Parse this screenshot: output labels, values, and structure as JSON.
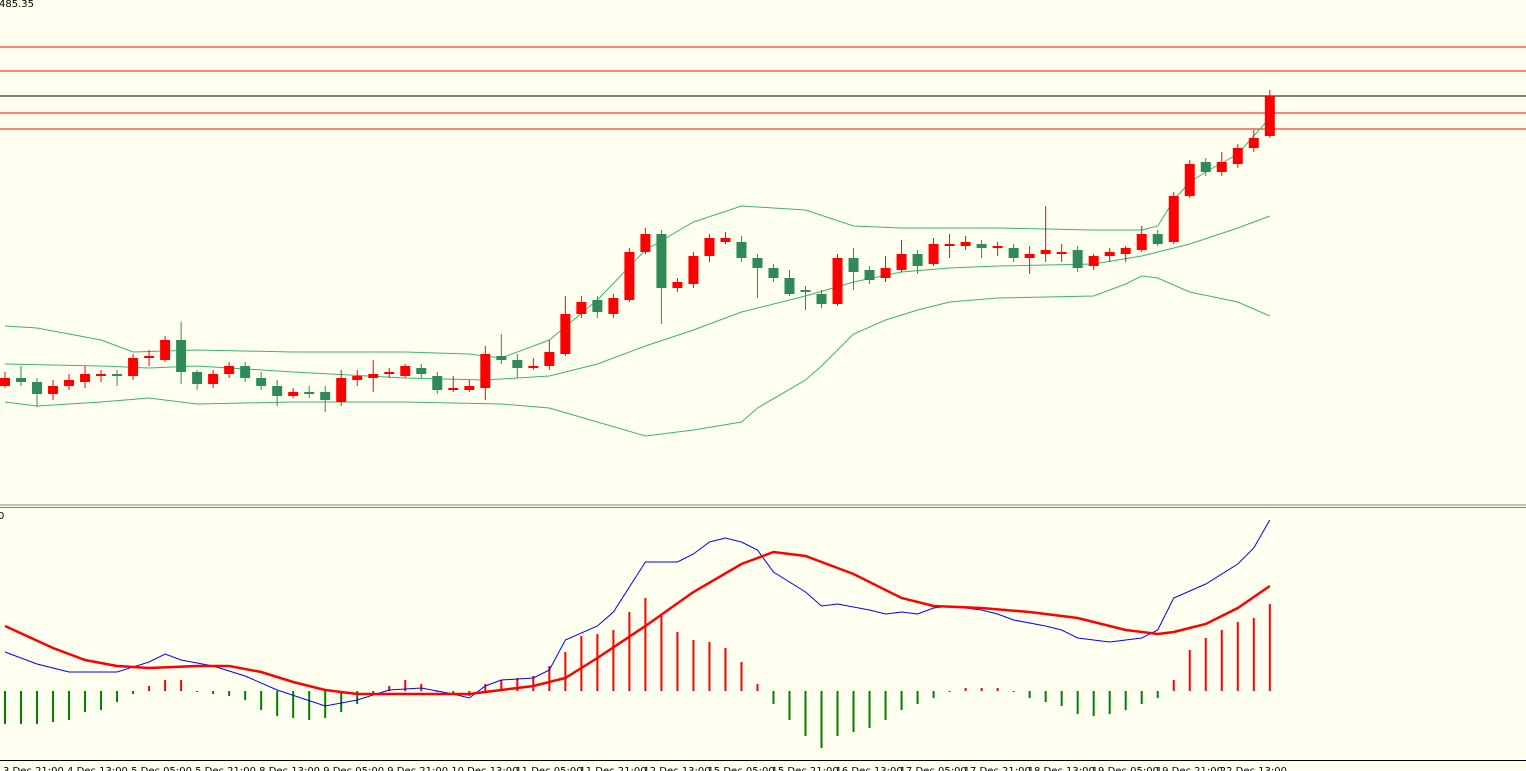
{
  "chart_data": [
    {
      "type": "candlestick",
      "top_label": "485.35",
      "categories": [
        "3 Dec 21:00",
        null,
        null,
        null,
        "4 Dec 13:00",
        null,
        null,
        null,
        "5 Dec 05:00",
        null,
        null,
        null,
        "5 Dec 21:00",
        null,
        null,
        null,
        "8 Dec 13:00",
        null,
        null,
        null,
        "9 Dec 05:00",
        null,
        null,
        null,
        "9 Dec 21:00",
        null,
        null,
        null,
        "10 Dec 13:00",
        null,
        null,
        null,
        "11 Dec 05:00",
        null,
        null,
        null,
        "11 Dec 21:00",
        null,
        null,
        null,
        "12 Dec 13:00",
        null,
        null,
        null,
        "15 Dec 05:00",
        null,
        null,
        null,
        "15 Dec 21:00",
        null,
        null,
        null,
        "16 Dec 13:00",
        null,
        null,
        null,
        "17 Dec 05:00",
        null,
        null,
        null,
        "17 Dec 21:00",
        null,
        null,
        null,
        "18 Dec 13:00",
        null,
        null,
        null,
        "19 Dec 05:00",
        null,
        null,
        null,
        "19 Dec 21:00",
        null,
        null,
        null,
        "22 Dec 13:00",
        null,
        null,
        null
      ],
      "open": [
        4294,
        4298,
        4296,
        4290,
        4294,
        4296,
        4299,
        4300,
        4299,
        4308,
        4307,
        4317,
        4301,
        4295,
        4300,
        4304,
        4298,
        4294,
        4289,
        4291,
        4291,
        4286,
        4297,
        4298,
        4300,
        4299,
        4303,
        4299,
        4292,
        4292,
        4293,
        4309,
        4307,
        4303,
        4304,
        4310,
        4330,
        4337,
        4330,
        4337,
        4361,
        4370,
        4343,
        4345,
        4359,
        4366,
        4366,
        4358,
        4353,
        4348,
        4342,
        4340,
        4335,
        4358,
        4352,
        4348,
        4352,
        4360,
        4355,
        4364,
        4364,
        4365,
        4363,
        4363,
        4358,
        4360,
        4360,
        4362,
        4354,
        4359,
        4360,
        4362,
        4370,
        4366,
        4389,
        4406,
        4401,
        4405,
        4413,
        4419
      ],
      "high": [
        4301,
        4304,
        4298,
        4297,
        4300,
        4304,
        4302,
        4302,
        4310,
        4312,
        4319,
        4326,
        4302,
        4302,
        4306,
        4306,
        4301,
        4297,
        4293,
        4294,
        4294,
        4302,
        4302,
        4307,
        4303,
        4305,
        4305,
        4301,
        4299,
        4297,
        4314,
        4320,
        4310,
        4308,
        4317,
        4339,
        4339,
        4339,
        4340,
        4363,
        4373,
        4372,
        4348,
        4361,
        4370,
        4371,
        4369,
        4360,
        4355,
        4352,
        4344,
        4342,
        4360,
        4363,
        4354,
        4359,
        4367,
        4362,
        4368,
        4370,
        4369,
        4367,
        4366,
        4365,
        4364,
        4384,
        4365,
        4364,
        4360,
        4363,
        4364,
        4374,
        4372,
        4391,
        4407,
        4408,
        4411,
        4415,
        4422,
        4442
      ],
      "low": [
        4293,
        4294,
        4283.5,
        4287,
        4292,
        4293,
        4296,
        4294,
        4297,
        4304,
        4306,
        4295,
        4292,
        4293,
        4298,
        4296,
        4292,
        4284,
        4288,
        4288,
        4281,
        4284,
        4294,
        4291,
        4298,
        4298,
        4298,
        4290,
        4291,
        4291,
        4287,
        4305,
        4298,
        4302,
        4302,
        4309,
        4328,
        4328,
        4328,
        4336,
        4360,
        4325,
        4341,
        4343,
        4356,
        4365,
        4356,
        4338,
        4346,
        4339,
        4332,
        4333,
        4334,
        4342,
        4345,
        4346,
        4351,
        4350,
        4354,
        4358,
        4362,
        4358,
        4359,
        4356,
        4350,
        4356,
        4356,
        4351,
        4352,
        4356,
        4356,
        4361,
        4364,
        4365,
        4388,
        4399,
        4399,
        4403,
        4411,
        4418
      ],
      "close": [
        4298,
        4296,
        4290,
        4294,
        4297,
        4300,
        4300,
        4299,
        4308,
        4309,
        4317,
        4301,
        4295,
        4300,
        4304,
        4298,
        4294,
        4289,
        4291,
        4290,
        4287,
        4298,
        4299,
        4300,
        4301,
        4304,
        4300,
        4292,
        4293,
        4294,
        4310,
        4307,
        4303,
        4304,
        4311,
        4330,
        4336,
        4331,
        4338,
        4361,
        4370,
        4343,
        4346,
        4359,
        4368,
        4368,
        4358,
        4353,
        4348,
        4340,
        4341,
        4335,
        4358,
        4351,
        4347,
        4353,
        4360,
        4354,
        4365,
        4365,
        4366,
        4363,
        4364,
        4358,
        4360,
        4362,
        4361,
        4353,
        4359,
        4361,
        4363,
        4370,
        4365,
        4389,
        4405,
        4401,
        4406,
        4413,
        4418,
        4439
      ],
      "up_color": "#ff0000",
      "down_color": "#2e8b57",
      "ylim": [
        4234.5,
        4487
      ],
      "levels": [
        {
          "value": 4463.5,
          "color": "#ff0000"
        },
        {
          "value": 4451.5,
          "color": "#ff0000"
        },
        {
          "value": 4439,
          "color": "#000000"
        },
        {
          "value": 4430.5,
          "color": "#ff0000"
        },
        {
          "value": 4422.5,
          "color": "#ff0000"
        }
      ],
      "series": [
        {
          "color": "#3cb371",
          "x": [
            0,
            2,
            6,
            8,
            12,
            18,
            25,
            29,
            31,
            34,
            37,
            40,
            43,
            46,
            50,
            53,
            56,
            62,
            68,
            71,
            72,
            73,
            74,
            75,
            77,
            79
          ],
          "values": [
            4324,
            4323,
            4317,
            4311,
            4312,
            4311,
            4311,
            4310,
            4308,
            4317,
            4337,
            4362,
            4376,
            4384,
            4382,
            4374,
            4373,
            4373,
            4372,
            4372,
            4374,
            4387,
            4396,
            4401,
            4410,
            4428
          ]
        },
        {
          "color": "#3cb371",
          "x": [
            0,
            6,
            9,
            12,
            18,
            25,
            30,
            34,
            37,
            40,
            43,
            46,
            50,
            53,
            56,
            59,
            62,
            68,
            71,
            72,
            74,
            77,
            79
          ],
          "values": [
            4305,
            4304,
            4303,
            4304,
            4301,
            4298,
            4297,
            4299,
            4305,
            4314,
            4322,
            4331,
            4339,
            4346,
            4351,
            4353,
            4354,
            4355,
            4359,
            4361,
            4365,
            4373,
            4379
          ]
        },
        {
          "color": "#3cb371",
          "x": [
            0,
            2,
            6,
            9,
            12,
            18,
            25,
            31,
            34,
            37,
            40,
            43,
            46,
            47,
            50,
            51,
            53,
            55,
            57,
            59,
            62,
            68,
            70,
            71,
            72,
            74,
            77,
            79
          ],
          "values": [
            4286,
            4284,
            4286,
            4288,
            4285,
            4286,
            4286,
            4285,
            4283,
            4276,
            4269,
            4272,
            4276,
            4283,
            4297,
            4304,
            4320,
            4327,
            4332,
            4336,
            4338,
            4339,
            4345,
            4349,
            4348,
            4341,
            4336,
            4329
          ]
        }
      ]
    },
    {
      "type": "macd",
      "top_label": "0",
      "ylim": [
        -3.45,
        9.15
      ],
      "histogram": [
        -1.65,
        -1.65,
        -1.65,
        -1.55,
        -1.45,
        -1.05,
        -0.95,
        -0.55,
        -0.15,
        0.25,
        0.55,
        0.55,
        -0.05,
        -0.15,
        -0.25,
        -0.45,
        -0.95,
        -1.25,
        -1.35,
        -1.45,
        -1.35,
        -1.05,
        -0.65,
        -0.15,
        0.25,
        0.55,
        0.35,
        -0.05,
        -0.15,
        -0.25,
        0.35,
        0.55,
        0.65,
        0.75,
        1.25,
        1.95,
        2.75,
        2.85,
        3.05,
        3.95,
        4.65,
        3.75,
        2.95,
        2.55,
        2.45,
        2.15,
        1.45,
        0.35,
        -0.65,
        -1.45,
        -2.25,
        -2.85,
        -2.25,
        -2.05,
        -1.85,
        -1.45,
        -0.95,
        -0.65,
        -0.35,
        -0.05,
        0.15,
        0.15,
        0.15,
        -0.05,
        -0.35,
        -0.55,
        -0.75,
        -1.15,
        -1.25,
        -1.15,
        -0.95,
        -0.65,
        -0.35,
        0.55,
        2.05,
        2.65,
        3.05,
        3.45,
        3.65,
        4.35
      ],
      "up_color": "#ff0000",
      "down_color": "#008000",
      "series": [
        {
          "color": "#0000ff",
          "width": 1,
          "x": [
            0,
            2,
            4,
            7,
            9,
            10,
            11,
            13,
            15,
            17,
            20,
            22,
            24,
            26,
            28,
            29,
            30,
            31,
            33,
            34,
            35,
            37,
            38,
            40,
            42,
            43,
            44,
            45,
            46,
            47,
            48,
            50,
            51,
            52,
            54,
            55,
            56,
            57,
            58,
            59,
            61,
            62,
            63,
            65,
            66,
            67,
            69,
            70,
            71,
            72,
            73,
            75,
            77,
            78,
            79
          ],
          "values": [
            1.95,
            1.35,
            0.95,
            0.95,
            1.45,
            1.85,
            1.55,
            1.25,
            0.75,
            0.05,
            -0.75,
            -0.45,
            0.05,
            0.15,
            -0.15,
            -0.35,
            0.25,
            0.55,
            0.65,
            1.05,
            2.55,
            3.25,
            3.95,
            6.45,
            6.45,
            6.85,
            7.45,
            7.65,
            7.45,
            7.05,
            5.95,
            4.95,
            4.25,
            4.35,
            4.05,
            3.85,
            3.95,
            3.85,
            4.15,
            4.25,
            4.05,
            3.85,
            3.55,
            3.25,
            3.05,
            2.65,
            2.45,
            2.55,
            2.65,
            3.05,
            4.65,
            5.35,
            6.35,
            7.15,
            8.55
          ]
        },
        {
          "color": "#ff0000",
          "width": 2.5,
          "x": [
            0,
            3,
            5,
            7,
            9,
            12,
            14,
            16,
            18,
            20,
            22,
            27,
            29,
            31,
            33,
            35,
            37,
            40,
            43,
            46,
            48,
            50,
            53,
            56,
            58,
            61,
            64,
            67,
            70,
            72,
            73,
            75,
            77,
            79
          ],
          "values": [
            3.25,
            2.15,
            1.55,
            1.25,
            1.15,
            1.25,
            1.25,
            0.95,
            0.45,
            0.05,
            -0.15,
            -0.15,
            -0.15,
            0.05,
            0.25,
            0.65,
            1.65,
            3.25,
            4.95,
            6.35,
            6.95,
            6.75,
            5.85,
            4.65,
            4.25,
            4.15,
            3.95,
            3.65,
            3.05,
            2.85,
            2.95,
            3.35,
            4.15,
            5.25
          ]
        }
      ]
    }
  ]
}
